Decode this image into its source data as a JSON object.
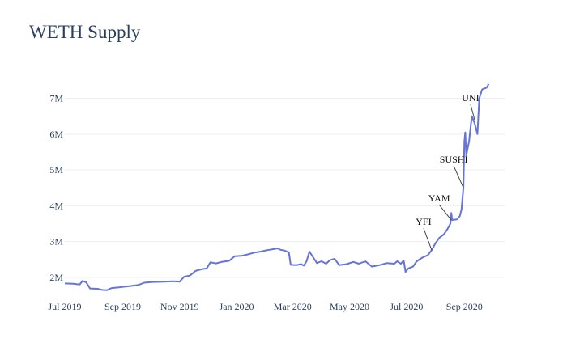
{
  "chart_data": {
    "type": "line",
    "title": "WETH Supply",
    "xlabel": "",
    "ylabel": "",
    "x_range": [
      "2019-07-01",
      "2020-10-15"
    ],
    "ylim": [
      1500000,
      7600000
    ],
    "grid": true,
    "line_color": "#6574d6",
    "x_ticks": [
      {
        "date": "2019-07-01",
        "label": "Jul 2019"
      },
      {
        "date": "2019-09-01",
        "label": "Sep 2019"
      },
      {
        "date": "2019-11-01",
        "label": "Nov 2019"
      },
      {
        "date": "2020-01-01",
        "label": "Jan 2020"
      },
      {
        "date": "2020-03-01",
        "label": "Mar 2020"
      },
      {
        "date": "2020-05-01",
        "label": "May 2020"
      },
      {
        "date": "2020-07-01",
        "label": "Jul 2020"
      },
      {
        "date": "2020-09-01",
        "label": "Sep 2020"
      }
    ],
    "y_ticks": [
      {
        "value": 2000000,
        "label": "2M"
      },
      {
        "value": 3000000,
        "label": "3M"
      },
      {
        "value": 4000000,
        "label": "4M"
      },
      {
        "value": 5000000,
        "label": "5M"
      },
      {
        "value": 6000000,
        "label": "6M"
      },
      {
        "value": 7000000,
        "label": "7M"
      }
    ],
    "series": [
      {
        "points": [
          [
            "2019-07-01",
            1830000
          ],
          [
            "2019-07-10",
            1820000
          ],
          [
            "2019-07-17",
            1800000
          ],
          [
            "2019-07-20",
            1900000
          ],
          [
            "2019-07-24",
            1860000
          ],
          [
            "2019-07-28",
            1690000
          ],
          [
            "2019-08-05",
            1680000
          ],
          [
            "2019-08-10",
            1650000
          ],
          [
            "2019-08-15",
            1640000
          ],
          [
            "2019-08-20",
            1700000
          ],
          [
            "2019-08-28",
            1720000
          ],
          [
            "2019-09-03",
            1740000
          ],
          [
            "2019-09-10",
            1760000
          ],
          [
            "2019-09-18",
            1790000
          ],
          [
            "2019-09-24",
            1850000
          ],
          [
            "2019-10-03",
            1870000
          ],
          [
            "2019-10-15",
            1880000
          ],
          [
            "2019-10-25",
            1890000
          ],
          [
            "2019-11-01",
            1880000
          ],
          [
            "2019-11-06",
            2020000
          ],
          [
            "2019-11-12",
            2050000
          ],
          [
            "2019-11-18",
            2180000
          ],
          [
            "2019-11-25",
            2230000
          ],
          [
            "2019-11-30",
            2250000
          ],
          [
            "2019-12-04",
            2420000
          ],
          [
            "2019-12-10",
            2390000
          ],
          [
            "2019-12-16",
            2430000
          ],
          [
            "2019-12-24",
            2460000
          ],
          [
            "2019-12-30",
            2590000
          ],
          [
            "2020-01-06",
            2600000
          ],
          [
            "2020-01-13",
            2640000
          ],
          [
            "2020-01-20",
            2690000
          ],
          [
            "2020-01-27",
            2720000
          ],
          [
            "2020-02-03",
            2760000
          ],
          [
            "2020-02-10",
            2790000
          ],
          [
            "2020-02-14",
            2810000
          ],
          [
            "2020-02-17",
            2770000
          ],
          [
            "2020-02-21",
            2750000
          ],
          [
            "2020-02-26",
            2700000
          ],
          [
            "2020-02-28",
            2350000
          ],
          [
            "2020-03-05",
            2340000
          ],
          [
            "2020-03-10",
            2370000
          ],
          [
            "2020-03-13",
            2330000
          ],
          [
            "2020-03-16",
            2450000
          ],
          [
            "2020-03-19",
            2720000
          ],
          [
            "2020-03-23",
            2560000
          ],
          [
            "2020-03-27",
            2400000
          ],
          [
            "2020-04-01",
            2450000
          ],
          [
            "2020-04-06",
            2380000
          ],
          [
            "2020-04-10",
            2480000
          ],
          [
            "2020-04-15",
            2520000
          ],
          [
            "2020-04-20",
            2340000
          ],
          [
            "2020-04-28",
            2370000
          ],
          [
            "2020-05-05",
            2430000
          ],
          [
            "2020-05-11",
            2380000
          ],
          [
            "2020-05-18",
            2450000
          ],
          [
            "2020-05-25",
            2300000
          ],
          [
            "2020-06-02",
            2340000
          ],
          [
            "2020-06-10",
            2400000
          ],
          [
            "2020-06-18",
            2380000
          ],
          [
            "2020-06-21",
            2450000
          ],
          [
            "2020-06-25",
            2380000
          ],
          [
            "2020-06-28",
            2470000
          ],
          [
            "2020-06-30",
            2150000
          ],
          [
            "2020-07-03",
            2250000
          ],
          [
            "2020-07-08",
            2300000
          ],
          [
            "2020-07-12",
            2450000
          ],
          [
            "2020-07-18",
            2550000
          ],
          [
            "2020-07-24",
            2620000
          ],
          [
            "2020-07-28",
            2760000
          ],
          [
            "2020-08-01",
            2950000
          ],
          [
            "2020-08-05",
            3100000
          ],
          [
            "2020-08-10",
            3200000
          ],
          [
            "2020-08-14",
            3350000
          ],
          [
            "2020-08-17",
            3500000
          ],
          [
            "2020-08-18",
            3800000
          ],
          [
            "2020-08-19",
            3600000
          ],
          [
            "2020-08-24",
            3620000
          ],
          [
            "2020-08-27",
            3700000
          ],
          [
            "2020-08-29",
            3900000
          ],
          [
            "2020-08-31",
            4500000
          ],
          [
            "2020-09-01",
            5800000
          ],
          [
            "2020-09-02",
            6050000
          ],
          [
            "2020-09-03",
            5400000
          ],
          [
            "2020-09-06",
            5800000
          ],
          [
            "2020-09-09",
            6500000
          ],
          [
            "2020-09-12",
            6300000
          ],
          [
            "2020-09-15",
            6000000
          ],
          [
            "2020-09-17",
            7000000
          ],
          [
            "2020-09-20",
            7250000
          ],
          [
            "2020-09-25",
            7300000
          ],
          [
            "2020-09-27",
            7400000
          ]
        ]
      }
    ],
    "annotations": [
      {
        "text": "YFI",
        "date": "2020-07-28",
        "value": 2760000
      },
      {
        "text": "YAM",
        "date": "2020-08-18",
        "value": 3600000
      },
      {
        "text": "SUSHI",
        "date": "2020-08-31",
        "value": 4500000
      },
      {
        "text": "UNI",
        "date": "2020-09-12",
        "value": 6400000
      }
    ]
  }
}
